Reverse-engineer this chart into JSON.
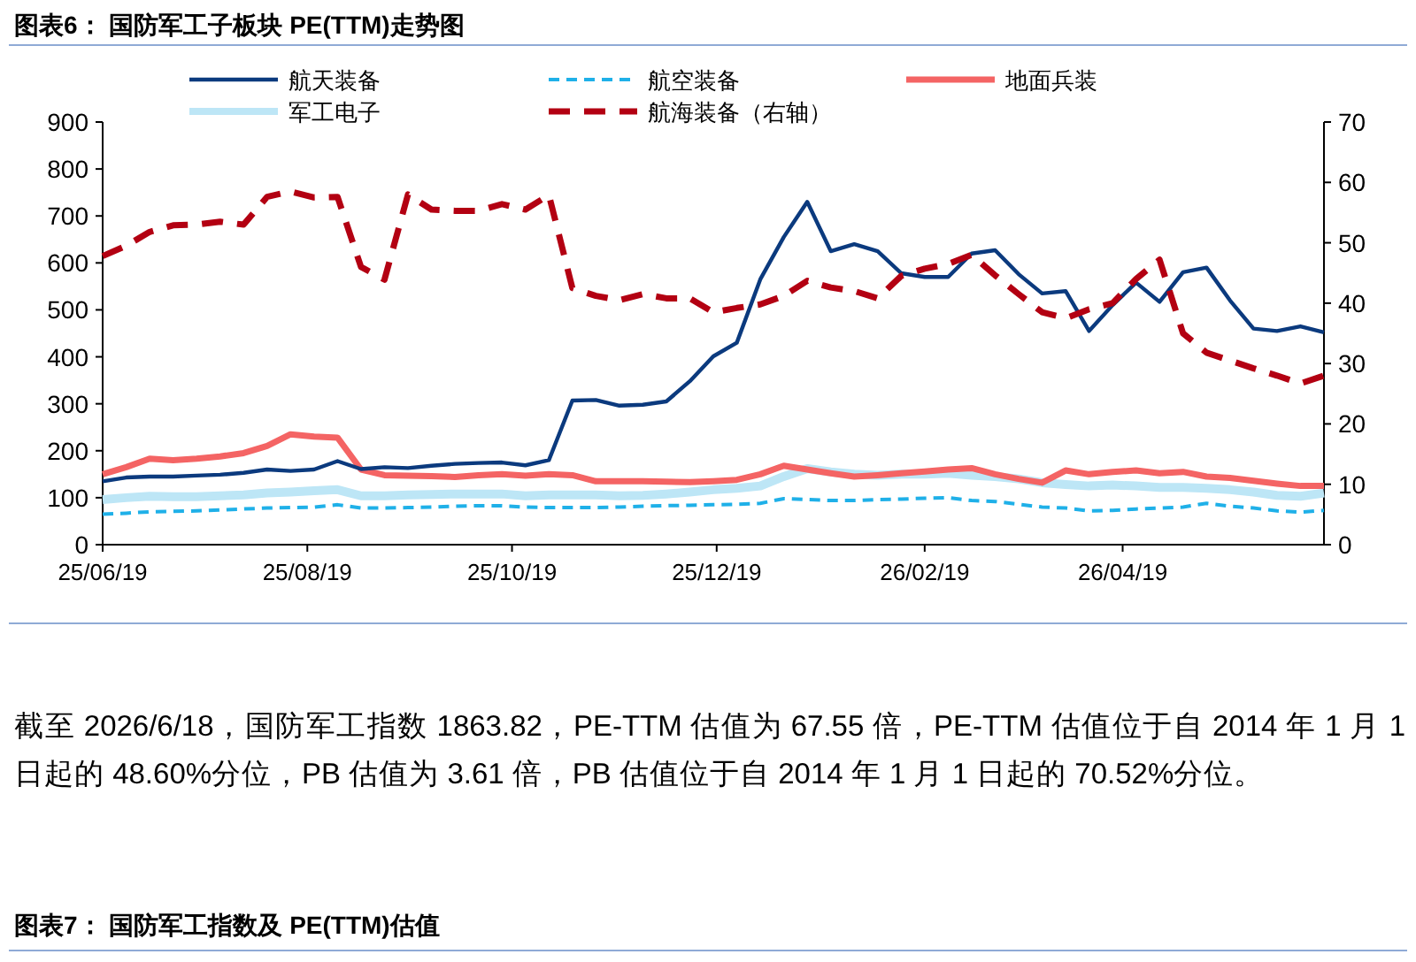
{
  "chart_data": {
    "type": "line",
    "title": "图表6：   国防军工子板块 PE(TTM)走势图",
    "x": [
      "2025-06-19",
      "2025-06-26",
      "2025-07-03",
      "2025-07-10",
      "2025-07-17",
      "2025-07-24",
      "2025-07-31",
      "2025-08-07",
      "2025-08-14",
      "2025-08-21",
      "2025-08-28",
      "2025-09-04",
      "2025-09-11",
      "2025-09-18",
      "2025-09-25",
      "2025-10-02",
      "2025-10-09",
      "2025-10-16",
      "2025-10-23",
      "2025-10-30",
      "2025-11-06",
      "2025-11-13",
      "2025-11-20",
      "2025-11-27",
      "2025-12-04",
      "2025-12-11",
      "2025-12-18",
      "2025-12-25",
      "2026-01-01",
      "2026-01-08",
      "2026-01-15",
      "2026-01-22",
      "2026-01-29",
      "2026-02-05",
      "2026-02-12",
      "2026-02-19",
      "2026-02-26",
      "2026-03-05",
      "2026-03-12",
      "2026-03-19",
      "2026-03-26",
      "2026-04-02",
      "2026-04-09",
      "2026-04-16",
      "2026-04-23",
      "2026-04-30",
      "2026-05-07",
      "2026-05-14",
      "2026-05-21",
      "2026-05-28",
      "2026-06-04",
      "2026-06-11",
      "2026-06-18"
    ],
    "series": [
      {
        "name": "军工电子",
        "color": "#bde6f6",
        "values": [
          96,
          100,
          103,
          102,
          102,
          104,
          106,
          110,
          112,
          115,
          117,
          104,
          104,
          106,
          107,
          108,
          108,
          108,
          104,
          106,
          106,
          106,
          104,
          105,
          108,
          112,
          117,
          120,
          125,
          145,
          162,
          155,
          150,
          148,
          150,
          150,
          152,
          148,
          145,
          140,
          132,
          128,
          125,
          127,
          125,
          122,
          122,
          120,
          117,
          112,
          105,
          103,
          110
        ]
      },
      {
        "name": "地面兵装",
        "color": "#f46464",
        "values": [
          150,
          165,
          183,
          180,
          183,
          188,
          195,
          210,
          235,
          230,
          228,
          160,
          148,
          147,
          146,
          144,
          148,
          150,
          147,
          150,
          148,
          135,
          135,
          135,
          134,
          133,
          135,
          138,
          150,
          168,
          160,
          152,
          145,
          148,
          152,
          156,
          160,
          163,
          150,
          140,
          132,
          158,
          150,
          155,
          158,
          152,
          155,
          145,
          142,
          136,
          130,
          125,
          125
        ]
      },
      {
        "name": "航空装备",
        "color": "#1fb0e8",
        "line_style": "dashed",
        "values": [
          65,
          67,
          70,
          71,
          72,
          74,
          76,
          78,
          79,
          80,
          85,
          78,
          78,
          79,
          80,
          82,
          83,
          83,
          80,
          79,
          79,
          79,
          80,
          82,
          83,
          84,
          85,
          86,
          88,
          98,
          96,
          94,
          94,
          96,
          97,
          99,
          100,
          94,
          92,
          86,
          80,
          78,
          72,
          73,
          76,
          78,
          80,
          88,
          82,
          78,
          72,
          69,
          73
        ]
      },
      {
        "name": "航天装备",
        "color": "#0b3a7e",
        "values": [
          135,
          143,
          145,
          145,
          147,
          149,
          153,
          160,
          157,
          160,
          178,
          161,
          165,
          163,
          168,
          172,
          174,
          175,
          169,
          180,
          307,
          308,
          296,
          298,
          305,
          348,
          401,
          430,
          565,
          655,
          730,
          625,
          640,
          625,
          578,
          570,
          570,
          620,
          627,
          576,
          535,
          540,
          455,
          510,
          558,
          517,
          580,
          590,
          520,
          460,
          455,
          465,
          452
        ]
      },
      {
        "name": "航海装备（右轴）",
        "color": "#b30012",
        "line_style": "dashed",
        "axis": "y2",
        "values": [
          47.8,
          49.5,
          51.8,
          52.9,
          53,
          53.5,
          53,
          57.6,
          58.5,
          57.5,
          57.6,
          46,
          43.9,
          58,
          55.5,
          55.3,
          55.3,
          56.4,
          55.5,
          57.9,
          42.5,
          41.2,
          40.5,
          41.5,
          40.8,
          40.8,
          38.5,
          39.2,
          39.8,
          41.2,
          43.7,
          42.6,
          42,
          40.8,
          44.5,
          45.7,
          46.5,
          48,
          44.6,
          41.5,
          38.5,
          37.5,
          39,
          40,
          44,
          47.2,
          35,
          31.8,
          30.5,
          29.2,
          28,
          26.7,
          28
        ]
      }
    ],
    "xlim": [
      "2025-06-19",
      "2026-06-18"
    ],
    "xticks": [
      {
        "value": "2025-06-19",
        "label": "25/06/19"
      },
      {
        "value": "2025-08-19",
        "label": "25/08/19"
      },
      {
        "value": "2025-10-19",
        "label": "25/10/19"
      },
      {
        "value": "2025-12-19",
        "label": "25/12/19"
      },
      {
        "value": "2026-02-19",
        "label": "26/02/19"
      },
      {
        "value": "2026-04-19",
        "label": "26/04/19"
      }
    ],
    "ylim": [
      0,
      900
    ],
    "yticks": [
      0,
      100,
      200,
      300,
      400,
      500,
      600,
      700,
      800,
      900
    ],
    "y2lim": [
      0,
      70
    ],
    "y2ticks": [
      0,
      10,
      20,
      30,
      40,
      50,
      60,
      70
    ],
    "legend": "top",
    "grid": false,
    "annotations": [
      "截至 2026/6/18，国防军工指数 1863.82，PE-TTM 估值为 67.55 倍，PE-TTM 估值位于自 2014 年 1 月 1 日起的 48.60%分位，PB 估值为 3.61 倍，PB 估值位于自 2014 年 1 月 1 日起的 70.52%分位。",
      "图表7：   国防军工指数及 PE(TTM)估值"
    ]
  }
}
